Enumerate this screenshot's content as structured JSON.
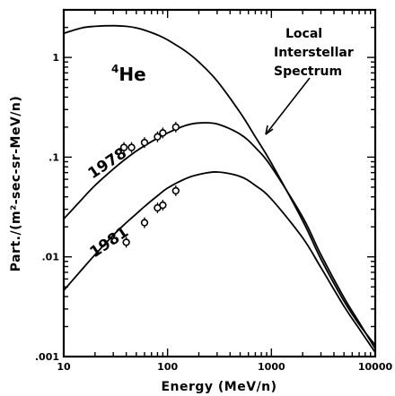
{
  "chart_data": {
    "type": "line",
    "xlabel": "Energy (MeV/n)",
    "ylabel": "Part./(m²-sec-sr-MeV/n)",
    "x_scale": "log",
    "y_scale": "log",
    "xlim": [
      10,
      10000
    ],
    "ylim": [
      0.001,
      3
    ],
    "x_tick_labels": [
      {
        "value": 10,
        "label": "10"
      },
      {
        "value": 100,
        "label": "100"
      },
      {
        "value": 1000,
        "label": "1000"
      },
      {
        "value": 10000,
        "label": "10000"
      }
    ],
    "y_tick_labels": [
      {
        "value": 1,
        "label": "1"
      },
      {
        "value": 0.1,
        "label": ".1"
      },
      {
        "value": 0.01,
        "label": ".01"
      },
      {
        "value": 0.001,
        "label": ".001"
      }
    ],
    "species_label_sup": "4",
    "species_label_base": "He",
    "annotations": [
      "Local",
      "Interstellar",
      "Spectrum"
    ],
    "series": [
      {
        "name": "Local Interstellar Spectrum",
        "x": [
          10,
          15,
          20,
          30,
          40,
          50,
          60,
          80,
          100,
          150,
          200,
          300,
          500,
          700,
          1000,
          2000,
          3000,
          5000,
          7000,
          10000
        ],
        "y": [
          1.75,
          1.98,
          2.05,
          2.08,
          2.05,
          1.98,
          1.88,
          1.68,
          1.5,
          1.15,
          0.9,
          0.58,
          0.28,
          0.16,
          0.087,
          0.023,
          0.0095,
          0.0036,
          0.0021,
          0.0013
        ]
      },
      {
        "name": "1978",
        "x": [
          10,
          15,
          20,
          30,
          40,
          50,
          60,
          80,
          100,
          150,
          200,
          300,
          500,
          700,
          1000,
          2000,
          3000,
          5000,
          7000,
          10000
        ],
        "y": [
          0.024,
          0.038,
          0.052,
          0.076,
          0.097,
          0.115,
          0.13,
          0.155,
          0.175,
          0.208,
          0.22,
          0.215,
          0.17,
          0.125,
          0.08,
          0.025,
          0.0105,
          0.0039,
          0.0022,
          0.0012
        ]
      },
      {
        "name": "1981",
        "x": [
          10,
          15,
          20,
          30,
          40,
          50,
          60,
          80,
          100,
          150,
          200,
          300,
          500,
          700,
          1000,
          2000,
          3000,
          5000,
          7000,
          10000
        ],
        "y": [
          0.0046,
          0.0075,
          0.0105,
          0.0165,
          0.022,
          0.027,
          0.032,
          0.041,
          0.049,
          0.061,
          0.067,
          0.071,
          0.064,
          0.052,
          0.038,
          0.0155,
          0.0078,
          0.0032,
          0.0019,
          0.0011
        ]
      }
    ],
    "points": [
      {
        "name": "1978",
        "x": [
          38,
          45,
          60,
          80,
          90,
          120
        ],
        "y": [
          0.125,
          0.125,
          0.14,
          0.16,
          0.175,
          0.2
        ]
      },
      {
        "name": "1981",
        "x": [
          40,
          60,
          80,
          90,
          120
        ],
        "y": [
          0.014,
          0.022,
          0.031,
          0.033,
          0.046
        ]
      }
    ]
  }
}
